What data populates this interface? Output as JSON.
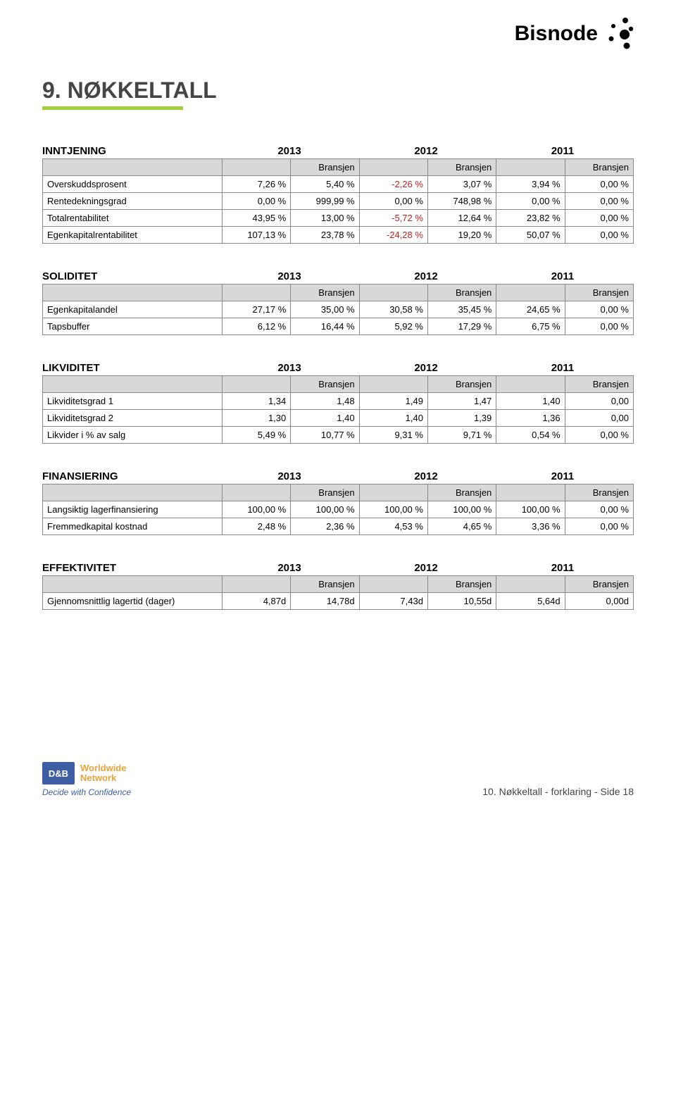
{
  "logo": {
    "brand": "Bisnode"
  },
  "section": {
    "title": "9. NØKKELTALL"
  },
  "colors": {
    "accent": "#9ed23c",
    "neg_text": "#c02020",
    "header_fill": "#d8d8d8",
    "border": "#888888"
  },
  "years": [
    "2013",
    "2012",
    "2011"
  ],
  "subhead": "Bransjen",
  "tables": {
    "inntjening": {
      "title": "INNTJENING",
      "rows": [
        {
          "label": "Overskuddsprosent",
          "cells": [
            "7,26 %",
            "5,40 %",
            "-2,26 %",
            "3,07 %",
            "3,94 %",
            "0,00 %"
          ],
          "neg": [
            false,
            false,
            true,
            false,
            false,
            false
          ]
        },
        {
          "label": "Rentedekningsgrad",
          "cells": [
            "0,00 %",
            "999,99 %",
            "0,00 %",
            "748,98 %",
            "0,00 %",
            "0,00 %"
          ],
          "neg": [
            false,
            false,
            false,
            false,
            false,
            false
          ]
        },
        {
          "label": "Totalrentabilitet",
          "cells": [
            "43,95 %",
            "13,00 %",
            "-5,72 %",
            "12,64 %",
            "23,82 %",
            "0,00 %"
          ],
          "neg": [
            false,
            false,
            true,
            false,
            false,
            false
          ]
        },
        {
          "label": "Egenkapitalrentabilitet",
          "cells": [
            "107,13 %",
            "23,78 %",
            "-24,28 %",
            "19,20 %",
            "50,07 %",
            "0,00 %"
          ],
          "neg": [
            false,
            false,
            true,
            false,
            false,
            false
          ]
        }
      ]
    },
    "soliditet": {
      "title": "SOLIDITET",
      "rows": [
        {
          "label": "Egenkapitalandel",
          "cells": [
            "27,17 %",
            "35,00 %",
            "30,58 %",
            "35,45 %",
            "24,65 %",
            "0,00 %"
          ],
          "neg": [
            false,
            false,
            false,
            false,
            false,
            false
          ]
        },
        {
          "label": "Tapsbuffer",
          "cells": [
            "6,12 %",
            "16,44 %",
            "5,92 %",
            "17,29 %",
            "6,75 %",
            "0,00 %"
          ],
          "neg": [
            false,
            false,
            false,
            false,
            false,
            false
          ]
        }
      ]
    },
    "likviditet": {
      "title": "LIKVIDITET",
      "rows": [
        {
          "label": "Likviditetsgrad 1",
          "cells": [
            "1,34",
            "1,48",
            "1,49",
            "1,47",
            "1,40",
            "0,00"
          ],
          "neg": [
            false,
            false,
            false,
            false,
            false,
            false
          ]
        },
        {
          "label": "Likviditetsgrad 2",
          "cells": [
            "1,30",
            "1,40",
            "1,40",
            "1,39",
            "1,36",
            "0,00"
          ],
          "neg": [
            false,
            false,
            false,
            false,
            false,
            false
          ]
        },
        {
          "label": "Likvider i % av salg",
          "cells": [
            "5,49 %",
            "10,77 %",
            "9,31 %",
            "9,71 %",
            "0,54 %",
            "0,00 %"
          ],
          "neg": [
            false,
            false,
            false,
            false,
            false,
            false
          ]
        }
      ]
    },
    "finansiering": {
      "title": "FINANSIERING",
      "rows": [
        {
          "label": "Langsiktig lagerfinansiering",
          "cells": [
            "100,00 %",
            "100,00 %",
            "100,00 %",
            "100,00 %",
            "100,00 %",
            "0,00 %"
          ],
          "neg": [
            false,
            false,
            false,
            false,
            false,
            false
          ]
        },
        {
          "label": "Fremmedkapital kostnad",
          "cells": [
            "2,48 %",
            "2,36 %",
            "4,53 %",
            "4,65 %",
            "3,36 %",
            "0,00 %"
          ],
          "neg": [
            false,
            false,
            false,
            false,
            false,
            false
          ]
        }
      ]
    },
    "effektivitet": {
      "title": "EFFEKTIVITET",
      "rows": [
        {
          "label": "Gjennomsnittlig lagertid (dager)",
          "cells": [
            "4,87d",
            "14,78d",
            "7,43d",
            "10,55d",
            "5,64d",
            "0,00d"
          ],
          "neg": [
            false,
            false,
            false,
            false,
            false,
            false
          ]
        }
      ]
    }
  },
  "footer": {
    "dnb": "D&B",
    "ww1": "Worldwide",
    "ww2": "Network",
    "tag": "Decide with Confidence",
    "page": "10. Nøkkeltall - forklaring - Side 18"
  }
}
